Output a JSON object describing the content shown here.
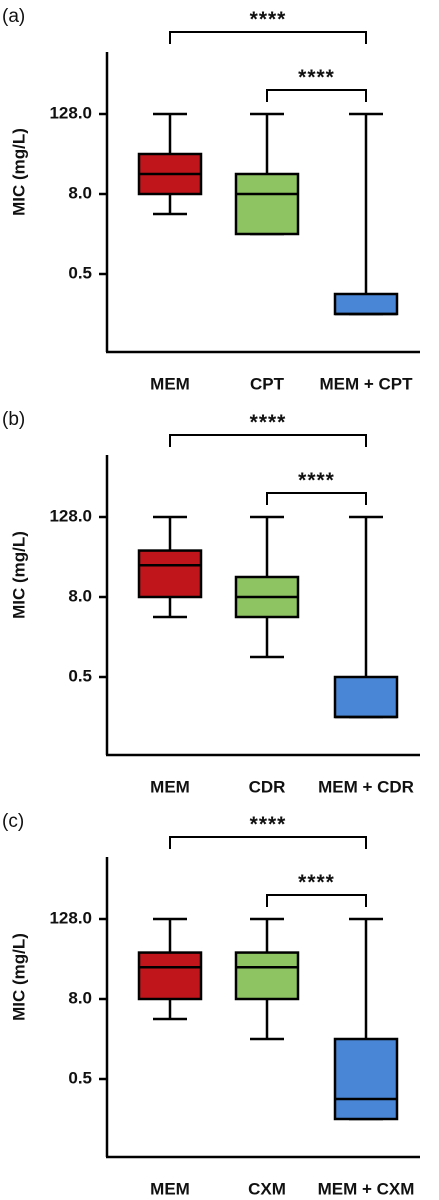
{
  "chart_data": [
    {
      "type": "box",
      "panel_label": "(a)",
      "ylabel": "MIC (mg/L)",
      "yscale": "log2",
      "yticks": [
        0.5,
        8.0,
        128.0
      ],
      "ytick_labels": [
        "0.5",
        "8.0",
        "128.0"
      ],
      "ylim": [
        0.0625,
        1024
      ],
      "categories": [
        "MEM",
        "CPT",
        "MEM + CPT"
      ],
      "boxes": [
        {
          "category": "MEM",
          "whisker_low": 4,
          "q1": 8,
          "median": 16,
          "q3": 32,
          "whisker_high": 128,
          "color": "#c0151b"
        },
        {
          "category": "CPT",
          "whisker_low": 2,
          "q1": 2,
          "median": 8,
          "q3": 16,
          "whisker_high": 128,
          "color": "#8fc463"
        },
        {
          "category": "MEM + CPT",
          "whisker_low": 0.125,
          "q1": 0.125,
          "median": 0.125,
          "q3": 0.25,
          "whisker_high": 128,
          "color": "#4a86d6"
        }
      ],
      "significance": [
        {
          "from": "MEM",
          "to": "MEM + CPT",
          "label": "****"
        },
        {
          "from": "CPT",
          "to": "MEM + CPT",
          "label": "****"
        }
      ]
    },
    {
      "type": "box",
      "panel_label": "(b)",
      "ylabel": "MIC (mg/L)",
      "yscale": "log2",
      "yticks": [
        0.5,
        8.0,
        128.0
      ],
      "ytick_labels": [
        "0.5",
        "8.0",
        "128.0"
      ],
      "ylim": [
        0.0625,
        1024
      ],
      "categories": [
        "MEM",
        "CDR",
        "MEM + CDR"
      ],
      "boxes": [
        {
          "category": "MEM",
          "whisker_low": 4,
          "q1": 8,
          "median": 24,
          "q3": 40,
          "whisker_high": 128,
          "color": "#c0151b"
        },
        {
          "category": "CDR",
          "whisker_low": 1,
          "q1": 4,
          "median": 8,
          "q3": 16,
          "whisker_high": 128,
          "color": "#8fc463"
        },
        {
          "category": "MEM + CDR",
          "whisker_low": 0.125,
          "q1": 0.125,
          "median": 0.125,
          "q3": 0.5,
          "whisker_high": 128,
          "color": "#4a86d6"
        }
      ],
      "significance": [
        {
          "from": "MEM",
          "to": "MEM + CDR",
          "label": "****"
        },
        {
          "from": "CDR",
          "to": "MEM + CDR",
          "label": "****"
        }
      ]
    },
    {
      "type": "box",
      "panel_label": "(c)",
      "ylabel": "MIC (mg/L)",
      "yscale": "log2",
      "yticks": [
        0.5,
        8.0,
        128.0
      ],
      "ytick_labels": [
        "0.5",
        "8.0",
        "128.0"
      ],
      "ylim": [
        0.0625,
        1024
      ],
      "categories": [
        "MEM",
        "CXM",
        "MEM + CXM"
      ],
      "boxes": [
        {
          "category": "MEM",
          "whisker_low": 4,
          "q1": 8,
          "median": 24,
          "q3": 40,
          "whisker_high": 128,
          "color": "#c0151b"
        },
        {
          "category": "CXM",
          "whisker_low": 2,
          "q1": 8,
          "median": 24,
          "q3": 40,
          "whisker_high": 128,
          "color": "#8fc463"
        },
        {
          "category": "MEM + CXM",
          "whisker_low": 0.125,
          "q1": 0.125,
          "median": 0.25,
          "q3": 2,
          "whisker_high": 128,
          "color": "#4a86d6"
        }
      ],
      "significance": [
        {
          "from": "MEM",
          "to": "MEM + CXM",
          "label": "****"
        },
        {
          "from": "CXM",
          "to": "MEM + CXM",
          "label": "****"
        }
      ]
    }
  ]
}
